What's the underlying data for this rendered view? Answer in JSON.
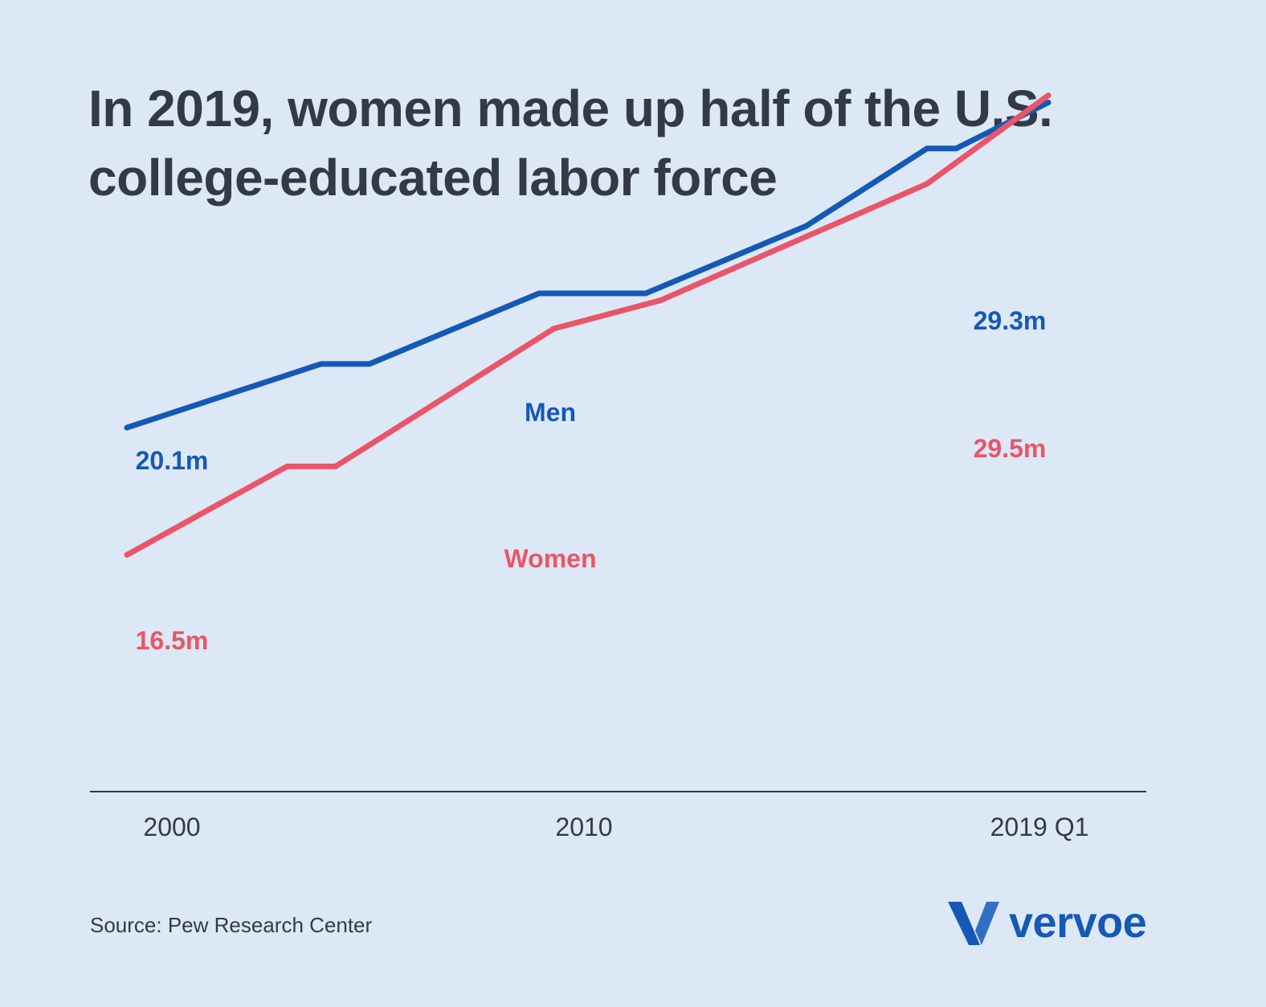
{
  "title_lines": [
    "In 2019, women made up half of the U.S.",
    "college-educated labor force"
  ],
  "source": "Source: Pew Research Center",
  "logo": {
    "icon": "vervoe-v-logo-icon",
    "text": "vervoe"
  },
  "colors": {
    "background": "#dde8f6",
    "men": "#1559b7",
    "women": "#eb5568",
    "axis": "#343a45"
  },
  "chart_data": {
    "type": "line",
    "title": "In 2019, women made up half of the U.S. college-educated labor force",
    "x_tick_labels": [
      {
        "x": 2000,
        "label": "2000"
      },
      {
        "x": 2010,
        "label": "2010"
      },
      {
        "x": 2019,
        "label": "2019 Q1"
      }
    ],
    "x_range": [
      2000,
      2019
    ],
    "y_range_millions": [
      9.8,
      32.2
    ],
    "grid": false,
    "legend": "inline labels",
    "series": [
      {
        "name": "Men",
        "color": "#1559b7",
        "x": [
          2000,
          2004,
          2005,
          2008.5,
          2010.7,
          2014,
          2016.5,
          2017.1,
          2019
        ],
        "y": [
          20.1,
          21.9,
          21.9,
          23.9,
          23.9,
          25.8,
          28.0,
          28.0,
          29.3
        ],
        "start_label": "20.1m",
        "end_label": "29.3m"
      },
      {
        "name": "Women",
        "color": "#eb5568",
        "x": [
          2000,
          2003.3,
          2004.3,
          2008.8,
          2011,
          2014,
          2016.5,
          2019
        ],
        "y": [
          16.5,
          19.0,
          19.0,
          22.9,
          23.7,
          25.5,
          27.0,
          29.5
        ],
        "start_label": "16.5m",
        "end_label": "29.5m"
      }
    ]
  }
}
